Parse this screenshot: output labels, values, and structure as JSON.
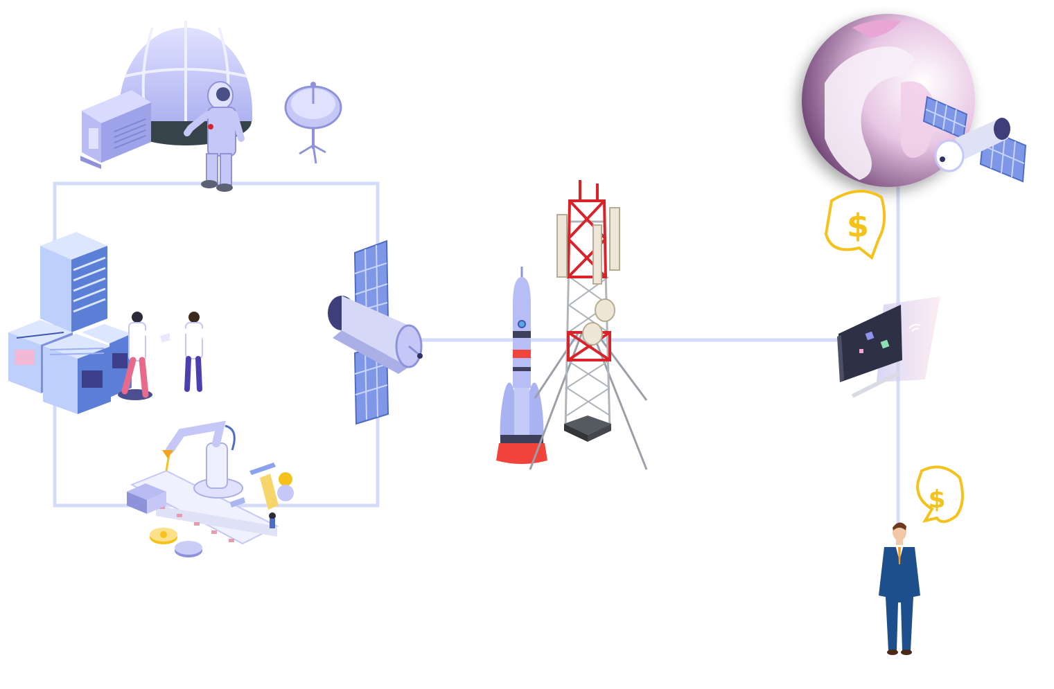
{
  "diagram": {
    "nodes": [
      {
        "id": "space-station",
        "icon": "dome-habitat-icon"
      },
      {
        "id": "astronaut",
        "icon": "astronaut-icon"
      },
      {
        "id": "dish",
        "icon": "satellite-dish-icon"
      },
      {
        "id": "data-center",
        "icon": "server-stack-icon"
      },
      {
        "id": "scientists",
        "icon": "scientists-icon"
      },
      {
        "id": "satellite-main",
        "icon": "satellite-icon"
      },
      {
        "id": "factory",
        "icon": "robot-arm-icon"
      },
      {
        "id": "rocket",
        "icon": "rocket-icon"
      },
      {
        "id": "cell-tower",
        "icon": "cell-tower-icon"
      },
      {
        "id": "globe",
        "icon": "globe-icon"
      },
      {
        "id": "orbit-satellite",
        "icon": "satellite-icon"
      },
      {
        "id": "payment-bubble-top",
        "icon": "dollar-bubble-icon"
      },
      {
        "id": "terminal",
        "icon": "wifi-terminal-icon"
      },
      {
        "id": "payment-bubble-bottom",
        "icon": "dollar-bubble-icon"
      },
      {
        "id": "customer",
        "icon": "businessman-icon"
      }
    ],
    "colors": {
      "connector": "#d5dcfa",
      "lavender": "#c5c8f7",
      "lavender_dark": "#8e93d9",
      "dome_base": "#37434a",
      "server_blue": "#5b7fd6",
      "server_light": "#dde6ff",
      "tower_red": "#d8232a",
      "tower_grey": "#9aa0a6",
      "rocket_red": "#f0443d",
      "rocket_body": "#b7bef5",
      "globe_purple": "#6b3a73",
      "globe_pink": "#e8a6d6",
      "gold": "#f4c21a",
      "suit_navy": "#1d4f8c",
      "screen_dark": "#2e3045"
    }
  }
}
